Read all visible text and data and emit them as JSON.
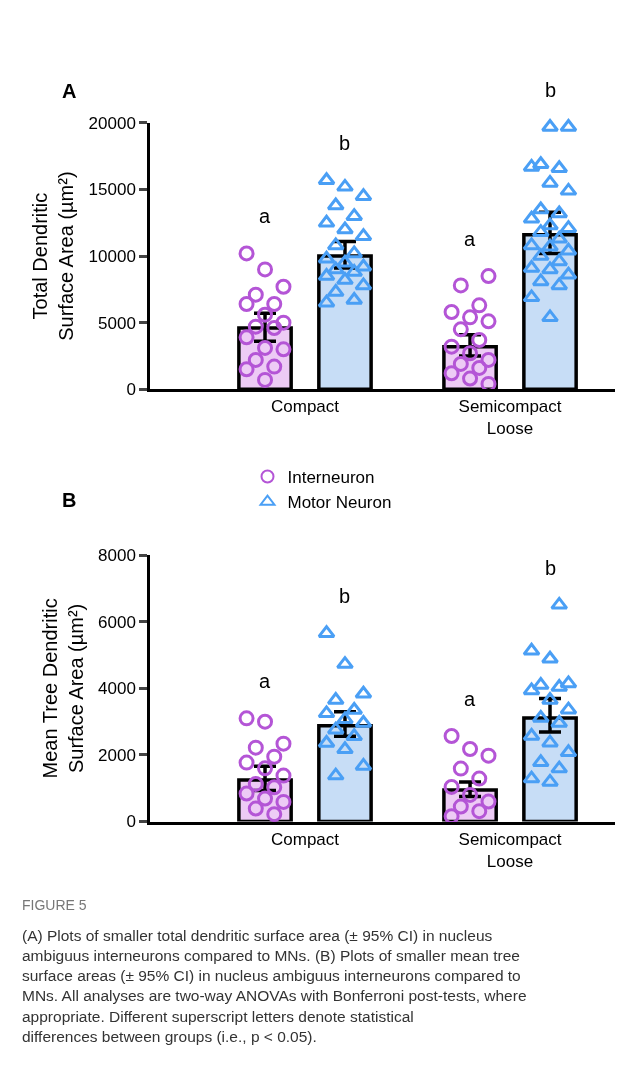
{
  "chart_data": [
    {
      "type": "bar",
      "title": "A",
      "ylabel": "Total Dendritic\nSurface Area (µm²)",
      "categories": [
        "Compact",
        "Semicompact\nLoose"
      ],
      "ylim": [
        0,
        20000
      ],
      "yticks": [
        0,
        5000,
        10000,
        15000,
        20000
      ],
      "legend": "bottom",
      "series": [
        {
          "type": "bar",
          "color": "#edcbf5",
          "values": [
            4600,
            3200
          ],
          "errors": [
            [
              3600,
              5700
            ],
            [
              2500,
              4100
            ]
          ]
        },
        {
          "type": "bar",
          "color": "#c7ddf6",
          "values": [
            10000,
            11600
          ],
          "errors": [
            [
              9100,
              11100
            ],
            [
              10200,
              13300
            ]
          ]
        },
        {
          "type": "scatter",
          "name": "Interneuron",
          "color": "#b455d6",
          "marker": "circle",
          "x": [
            "Compact",
            "Compact",
            "Compact",
            "Compact",
            "Compact",
            "Compact",
            "Compact",
            "Compact",
            "Compact",
            "Compact",
            "Compact",
            "Compact",
            "Compact",
            "Compact",
            "Compact",
            "Compact",
            "Compact",
            "Semicompact\nLoose",
            "Semicompact\nLoose",
            "Semicompact\nLoose",
            "Semicompact\nLoose",
            "Semicompact\nLoose",
            "Semicompact\nLoose",
            "Semicompact\nLoose",
            "Semicompact\nLoose",
            "Semicompact\nLoose",
            "Semicompact\nLoose",
            "Semicompact\nLoose",
            "Semicompact\nLoose",
            "Semicompact\nLoose",
            "Semicompact\nLoose",
            "Semicompact\nLoose",
            "Semicompact\nLoose"
          ],
          "values": [
            10200,
            9000,
            7700,
            7100,
            6400,
            6400,
            5600,
            5000,
            4700,
            4600,
            3900,
            3100,
            3000,
            2200,
            1700,
            1500,
            700,
            8500,
            7800,
            6300,
            5800,
            5400,
            5100,
            4500,
            3700,
            3200,
            2700,
            2200,
            1900,
            1600,
            1200,
            800,
            400
          ]
        },
        {
          "type": "scatter",
          "name": "Motor Neuron",
          "color": "#4a9ff5",
          "marker": "triangle",
          "x": [
            "Compact",
            "Compact",
            "Compact",
            "Compact",
            "Compact",
            "Compact",
            "Compact",
            "Compact",
            "Compact",
            "Compact",
            "Compact",
            "Compact",
            "Compact",
            "Compact",
            "Compact",
            "Compact",
            "Compact",
            "Compact",
            "Compact",
            "Compact",
            "Compact",
            "Semicompact\nLoose",
            "Semicompact\nLoose",
            "Semicompact\nLoose",
            "Semicompact\nLoose",
            "Semicompact\nLoose",
            "Semicompact\nLoose",
            "Semicompact\nLoose",
            "Semicompact\nLoose",
            "Semicompact\nLoose",
            "Semicompact\nLoose",
            "Semicompact\nLoose",
            "Semicompact\nLoose",
            "Semicompact\nLoose",
            "Semicompact\nLoose",
            "Semicompact\nLoose",
            "Semicompact\nLoose",
            "Semicompact\nLoose",
            "Semicompact\nLoose",
            "Semicompact\nLoose",
            "Semicompact\nLoose",
            "Semicompact\nLoose",
            "Semicompact\nLoose",
            "Semicompact\nLoose",
            "Semicompact\nLoose",
            "Semicompact\nLoose",
            "Semicompact\nLoose"
          ],
          "values": [
            15700,
            15200,
            14500,
            13800,
            13000,
            12500,
            12000,
            11500,
            10800,
            10200,
            9800,
            9500,
            9200,
            9000,
            8800,
            8500,
            8200,
            7800,
            7300,
            6700,
            6500,
            19700,
            19700,
            16900,
            16600,
            16700,
            15500,
            14900,
            13500,
            13200,
            12800,
            12300,
            12100,
            11800,
            11300,
            10800,
            10700,
            10400,
            10000,
            9600,
            9100,
            9000,
            8600,
            8100,
            7800,
            6900,
            5400
          ]
        }
      ],
      "annotations": [
        "a",
        "b",
        "a",
        "b"
      ]
    },
    {
      "type": "bar",
      "title": "B",
      "ylabel": "Mean Tree Dendritic\nSurface Area (µm²)",
      "categories": [
        "Compact",
        "Semicompact\nLoose"
      ],
      "ylim": [
        0,
        8000
      ],
      "yticks": [
        0,
        2000,
        4000,
        6000,
        8000
      ],
      "series": [
        {
          "type": "bar",
          "color": "#edcbf5",
          "values": [
            1250,
            950
          ],
          "errors": [
            [
              930,
              1660
            ],
            [
              750,
              1190
            ]
          ]
        },
        {
          "type": "bar",
          "color": "#c7ddf6",
          "values": [
            2880,
            3110
          ],
          "errors": [
            [
              2560,
              3300
            ],
            [
              2690,
              3700
            ]
          ]
        },
        {
          "type": "scatter",
          "color": "#b455d6",
          "marker": "circle",
          "x": [
            "Compact",
            "Compact",
            "Compact",
            "Compact",
            "Compact",
            "Compact",
            "Compact",
            "Compact",
            "Compact",
            "Compact",
            "Compact",
            "Compact",
            "Compact",
            "Compact",
            "Compact",
            "Semicompact\nLoose",
            "Semicompact\nLoose",
            "Semicompact\nLoose",
            "Semicompact\nLoose",
            "Semicompact\nLoose",
            "Semicompact\nLoose",
            "Semicompact\nLoose",
            "Semicompact\nLoose",
            "Semicompact\nLoose",
            "Semicompact\nLoose",
            "Semicompact\nLoose"
          ],
          "values": [
            3100,
            3000,
            2340,
            2220,
            1950,
            1770,
            1600,
            1380,
            1130,
            1030,
            840,
            690,
            590,
            390,
            220,
            2570,
            2180,
            1980,
            1590,
            1290,
            1040,
            800,
            600,
            450,
            310,
            160
          ]
        },
        {
          "type": "scatter",
          "color": "#4a9ff5",
          "marker": "triangle",
          "x": [
            "Compact",
            "Compact",
            "Compact",
            "Compact",
            "Compact",
            "Compact",
            "Compact",
            "Compact",
            "Compact",
            "Compact",
            "Compact",
            "Compact",
            "Compact",
            "Compact",
            "Semicompact\nLoose",
            "Semicompact\nLoose",
            "Semicompact\nLoose",
            "Semicompact\nLoose",
            "Semicompact\nLoose",
            "Semicompact\nLoose",
            "Semicompact\nLoose",
            "Semicompact\nLoose",
            "Semicompact\nLoose",
            "Semicompact\nLoose",
            "Semicompact\nLoose",
            "Semicompact\nLoose",
            "Semicompact\nLoose",
            "Semicompact\nLoose",
            "Semicompact\nLoose",
            "Semicompact\nLoose",
            "Semicompact\nLoose",
            "Semicompact\nLoose"
          ],
          "values": [
            5660,
            4730,
            3840,
            3650,
            3350,
            3250,
            3070,
            2960,
            2760,
            2560,
            2360,
            2170,
            1670,
            1380,
            6510,
            5130,
            4890,
            4150,
            4100,
            4040,
            3940,
            3650,
            3360,
            3110,
            2960,
            2570,
            2370,
            2080,
            1780,
            1590,
            1290,
            1190
          ]
        }
      ],
      "annotations": [
        "a",
        "b",
        "a",
        "b",
        "FIGURE 5",
        "(A) Plots of smaller total dendritic surface area (± 95% CI) in nucleus ambiguus interneurons compared to MNs. (B) Plots of smaller mean tree surface areas (± 95% CI) in nucleus ambiguus interneurons compared to MNs. All analyses are two-way ANOVAs with Bonferroni post-tests, where appropriate. Different superscript letters denote statistical differences between groups (i.e., p < 0.05)."
      ]
    }
  ]
}
